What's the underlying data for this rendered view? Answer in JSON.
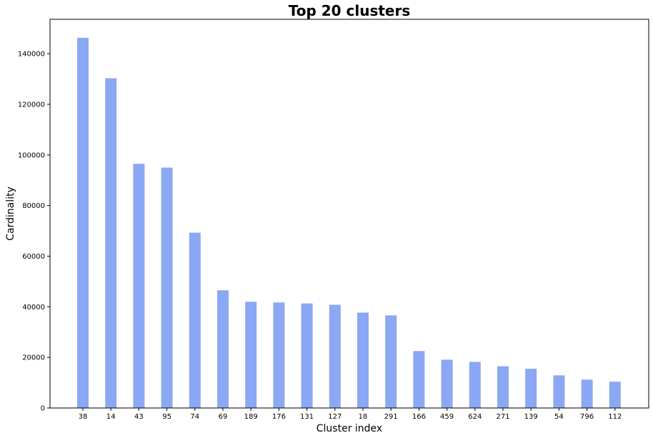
{
  "chart_data": {
    "type": "bar",
    "title": "Top 20 clusters",
    "xlabel": "Cluster index",
    "ylabel": "Cardinality",
    "categories": [
      "38",
      "14",
      "43",
      "95",
      "74",
      "69",
      "189",
      "176",
      "131",
      "127",
      "18",
      "291",
      "166",
      "459",
      "624",
      "271",
      "139",
      "54",
      "796",
      "112"
    ],
    "values": [
      146300,
      130300,
      96500,
      95000,
      69300,
      46500,
      42000,
      41700,
      41300,
      40800,
      37700,
      36600,
      22500,
      19100,
      18200,
      16500,
      15500,
      12900,
      11200,
      10400
    ],
    "yticks": [
      0,
      20000,
      40000,
      60000,
      80000,
      100000,
      120000,
      140000
    ],
    "ylim": [
      0,
      153600
    ],
    "grid": false,
    "bar_color": "#8BA8F4"
  }
}
